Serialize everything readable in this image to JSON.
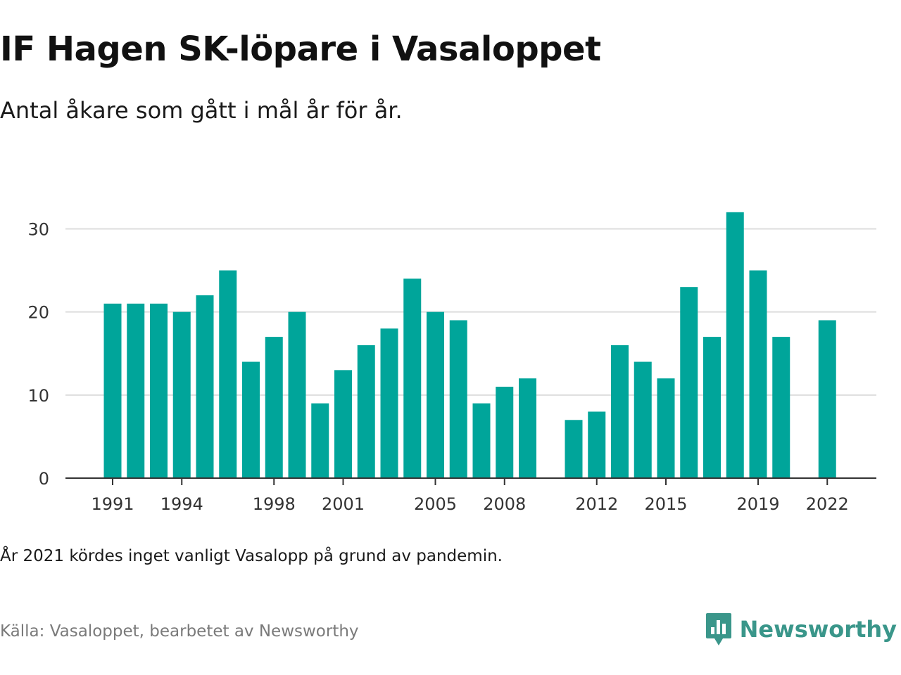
{
  "title": "IF Hagen SK-löpare i Vasaloppet",
  "subtitle": "Antal åkare som gått i mål år för år.",
  "note": "År 2021 kördes inget vanligt Vasalopp på grund av pandemin.",
  "source": "Källa: Vasaloppet, bearbetet av Newsworthy",
  "brand": {
    "name": "Newsworthy",
    "icon": "newsworthy-logo-icon",
    "color": "#3a968a"
  },
  "chart_data": {
    "type": "bar",
    "title": "IF Hagen SK-löpare i Vasaloppet",
    "subtitle": "Antal åkare som gått i mål år för år.",
    "xlabel": "",
    "ylabel": "",
    "categories": [
      1991,
      1992,
      1993,
      1994,
      1995,
      1996,
      1997,
      1998,
      1999,
      2000,
      2001,
      2002,
      2003,
      2004,
      2005,
      2006,
      2007,
      2008,
      2009,
      2010,
      2011,
      2012,
      2013,
      2014,
      2015,
      2016,
      2017,
      2018,
      2019,
      2020,
      2021,
      2022
    ],
    "values": [
      21,
      21,
      21,
      20,
      22,
      25,
      14,
      17,
      20,
      9,
      13,
      16,
      18,
      24,
      20,
      19,
      9,
      11,
      12,
      null,
      7,
      8,
      16,
      14,
      12,
      23,
      17,
      32,
      25,
      17,
      null,
      19
    ],
    "x_tick_labels": [
      "1991",
      "1994",
      "1998",
      "2001",
      "2005",
      "2008",
      "2012",
      "2015",
      "2019",
      "2022"
    ],
    "y_ticks": [
      0,
      10,
      20,
      30
    ],
    "ylim": [
      0,
      33
    ],
    "grid": true,
    "bar_color": "#00a59a"
  }
}
